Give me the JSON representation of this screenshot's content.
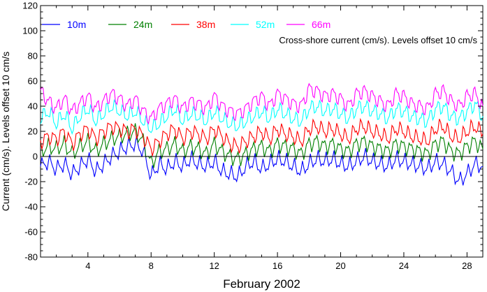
{
  "chart_data": {
    "type": "line",
    "title": "",
    "annotation": "Cross-shore current (cm/s). Levels offset 10 cm/s",
    "xlabel": "February 2002",
    "ylabel": "Current (cm/s). Levels offset 10 cm/s",
    "xlim": [
      1,
      29
    ],
    "ylim": [
      -80,
      120
    ],
    "x_ticks": [
      4,
      8,
      12,
      16,
      20,
      24,
      28
    ],
    "y_ticks": [
      -80,
      -60,
      -40,
      -20,
      0,
      20,
      40,
      60,
      80,
      100,
      120
    ],
    "zero_line": 0,
    "legend_position": "top-left",
    "grid": false,
    "series": [
      {
        "name": "10m",
        "color": "#0000ff",
        "offset": 0,
        "x": [
          1.0,
          1.5,
          2.0,
          2.5,
          3.0,
          3.5,
          4.0,
          4.5,
          5.0,
          5.5,
          6.0,
          6.5,
          7.0,
          7.5,
          8.0,
          8.5,
          9.0,
          9.5,
          10.0,
          10.5,
          11.0,
          11.5,
          12.0,
          12.5,
          13.0,
          13.5,
          14.0,
          14.5,
          15.0,
          15.5,
          16.0,
          16.5,
          17.0,
          17.5,
          18.0,
          18.5,
          19.0,
          19.5,
          20.0,
          20.5,
          21.0,
          21.5,
          22.0,
          22.5,
          23.0,
          23.5,
          24.0,
          24.5,
          25.0,
          25.5,
          26.0,
          26.5,
          27.0,
          27.5,
          28.0,
          28.5,
          29.0
        ],
        "y": [
          -8,
          -4,
          -10,
          -6,
          -14,
          -8,
          -2,
          -12,
          -6,
          0,
          4,
          8,
          10,
          4,
          -16,
          -6,
          -10,
          -4,
          -8,
          -2,
          -6,
          -8,
          -4,
          -12,
          -14,
          -16,
          -8,
          -4,
          -10,
          -6,
          -2,
          -4,
          -8,
          -12,
          -6,
          -2,
          -4,
          -2,
          -6,
          -8,
          -4,
          0,
          -4,
          -6,
          -8,
          -2,
          -4,
          -6,
          -8,
          -10,
          -4,
          -6,
          -12,
          -20,
          -14,
          -6,
          -8
        ]
      },
      {
        "name": "24m",
        "color": "#008000",
        "offset": 10,
        "x": [
          1.0,
          1.5,
          2.0,
          2.5,
          3.0,
          3.5,
          4.0,
          4.5,
          5.0,
          5.5,
          6.0,
          6.5,
          7.0,
          7.5,
          8.0,
          8.5,
          9.0,
          9.5,
          10.0,
          10.5,
          11.0,
          11.5,
          12.0,
          12.5,
          13.0,
          13.5,
          14.0,
          14.5,
          15.0,
          15.5,
          16.0,
          16.5,
          17.0,
          17.5,
          18.0,
          18.5,
          19.0,
          19.5,
          20.0,
          20.5,
          21.0,
          21.5,
          22.0,
          22.5,
          23.0,
          23.5,
          24.0,
          24.5,
          25.0,
          25.5,
          26.0,
          26.5,
          27.0,
          27.5,
          28.0,
          28.5,
          29.0
        ],
        "y": [
          4,
          8,
          6,
          10,
          2,
          8,
          12,
          4,
          10,
          14,
          16,
          18,
          20,
          12,
          -6,
          4,
          6,
          10,
          4,
          8,
          6,
          2,
          10,
          4,
          0,
          -2,
          2,
          6,
          8,
          4,
          10,
          8,
          6,
          2,
          10,
          12,
          8,
          10,
          6,
          4,
          10,
          12,
          8,
          6,
          4,
          10,
          8,
          6,
          4,
          2,
          10,
          12,
          4,
          2,
          8,
          12,
          6
        ]
      },
      {
        "name": "38m",
        "color": "#ff0000",
        "offset": 20,
        "x": [
          1.0,
          1.5,
          2.0,
          2.5,
          3.0,
          3.5,
          4.0,
          4.5,
          5.0,
          5.5,
          6.0,
          6.5,
          7.0,
          7.5,
          8.0,
          8.5,
          9.0,
          9.5,
          10.0,
          10.5,
          11.0,
          11.5,
          12.0,
          12.5,
          13.0,
          13.5,
          14.0,
          14.5,
          15.0,
          15.5,
          16.0,
          16.5,
          17.0,
          17.5,
          18.0,
          18.5,
          19.0,
          19.5,
          20.0,
          20.5,
          21.0,
          21.5,
          22.0,
          22.5,
          23.0,
          23.5,
          24.0,
          24.5,
          25.0,
          25.5,
          26.0,
          26.5,
          27.0,
          27.5,
          28.0,
          28.5,
          29.0
        ],
        "y": [
          12,
          16,
          14,
          20,
          10,
          18,
          22,
          14,
          20,
          24,
          22,
          20,
          22,
          16,
          6,
          12,
          18,
          22,
          14,
          20,
          18,
          14,
          22,
          16,
          10,
          8,
          12,
          16,
          20,
          14,
          22,
          18,
          16,
          12,
          22,
          24,
          20,
          22,
          18,
          14,
          22,
          24,
          20,
          18,
          14,
          22,
          20,
          16,
          14,
          12,
          22,
          24,
          16,
          14,
          20,
          24,
          18
        ]
      },
      {
        "name": "52m",
        "color": "#00ffff",
        "offset": 30,
        "x": [
          1.0,
          1.5,
          2.0,
          2.5,
          3.0,
          3.5,
          4.0,
          4.5,
          5.0,
          5.5,
          6.0,
          6.5,
          7.0,
          7.5,
          8.0,
          8.5,
          9.0,
          9.5,
          10.0,
          10.5,
          11.0,
          11.5,
          12.0,
          12.5,
          13.0,
          13.5,
          14.0,
          14.5,
          15.0,
          15.5,
          16.0,
          16.5,
          17.0,
          17.5,
          18.0,
          18.5,
          19.0,
          19.5,
          20.0,
          20.5,
          21.0,
          21.5,
          22.0,
          22.5,
          23.0,
          23.5,
          24.0,
          24.5,
          25.0,
          25.5,
          26.0,
          26.5,
          27.0,
          27.5,
          28.0,
          28.5,
          29.0
        ],
        "y": [
          30,
          36,
          26,
          34,
          22,
          32,
          38,
          28,
          34,
          40,
          36,
          32,
          36,
          28,
          22,
          26,
          32,
          38,
          28,
          34,
          32,
          28,
          36,
          30,
          26,
          24,
          28,
          32,
          36,
          30,
          38,
          34,
          30,
          28,
          38,
          40,
          36,
          38,
          34,
          30,
          38,
          40,
          36,
          34,
          30,
          38,
          36,
          32,
          30,
          28,
          38,
          40,
          32,
          30,
          36,
          42,
          32
        ]
      },
      {
        "name": "66m",
        "color": "#ff00ff",
        "offset": 40,
        "x": [
          1.0,
          1.5,
          2.0,
          2.5,
          3.0,
          3.5,
          4.0,
          4.5,
          5.0,
          5.5,
          6.0,
          6.5,
          7.0,
          7.5,
          8.0,
          8.5,
          9.0,
          9.5,
          10.0,
          10.5,
          11.0,
          11.5,
          12.0,
          12.5,
          13.0,
          13.5,
          14.0,
          14.5,
          15.0,
          15.5,
          16.0,
          16.5,
          17.0,
          17.5,
          18.0,
          18.5,
          19.0,
          19.5,
          20.0,
          20.5,
          21.0,
          21.5,
          22.0,
          22.5,
          23.0,
          23.5,
          24.0,
          24.5,
          25.0,
          25.5,
          26.0,
          26.5,
          27.0,
          27.5,
          28.0,
          28.5,
          29.0
        ],
        "y": [
          52,
          44,
          38,
          46,
          36,
          42,
          48,
          38,
          44,
          50,
          46,
          40,
          46,
          36,
          30,
          38,
          42,
          46,
          38,
          44,
          42,
          38,
          48,
          40,
          36,
          34,
          38,
          44,
          48,
          40,
          50,
          46,
          42,
          40,
          54,
          52,
          48,
          50,
          46,
          40,
          50,
          52,
          48,
          44,
          40,
          50,
          48,
          42,
          40,
          38,
          50,
          52,
          44,
          40,
          48,
          50,
          40
        ]
      }
    ]
  }
}
